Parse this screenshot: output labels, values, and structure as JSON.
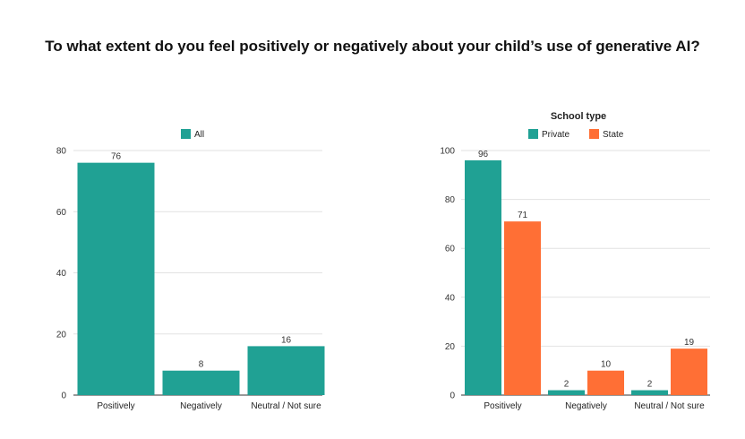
{
  "title": "To what extent do you feel positively or negatively about your child’s use of generative AI?",
  "chart_data": [
    {
      "type": "bar",
      "categories": [
        "Positively",
        "Negatively",
        "Neutral / Not sure"
      ],
      "series": [
        {
          "name": "All",
          "values": [
            76,
            8,
            16
          ],
          "color": "#20a194"
        }
      ],
      "ylim": [
        0,
        80
      ],
      "yticks": [
        0,
        20,
        40,
        60,
        80
      ],
      "legend_title": "",
      "legend_position": "top",
      "grid": true
    },
    {
      "type": "bar",
      "categories": [
        "Positively",
        "Negatively",
        "Neutral / Not sure"
      ],
      "series": [
        {
          "name": "Private",
          "values": [
            96,
            2,
            2
          ],
          "color": "#20a194"
        },
        {
          "name": "State",
          "values": [
            71,
            10,
            19
          ],
          "color": "#ff6f35"
        }
      ],
      "ylim": [
        0,
        100
      ],
      "yticks": [
        0,
        20,
        40,
        60,
        80,
        100
      ],
      "legend_title": "School type",
      "legend_position": "top",
      "grid": true
    }
  ]
}
